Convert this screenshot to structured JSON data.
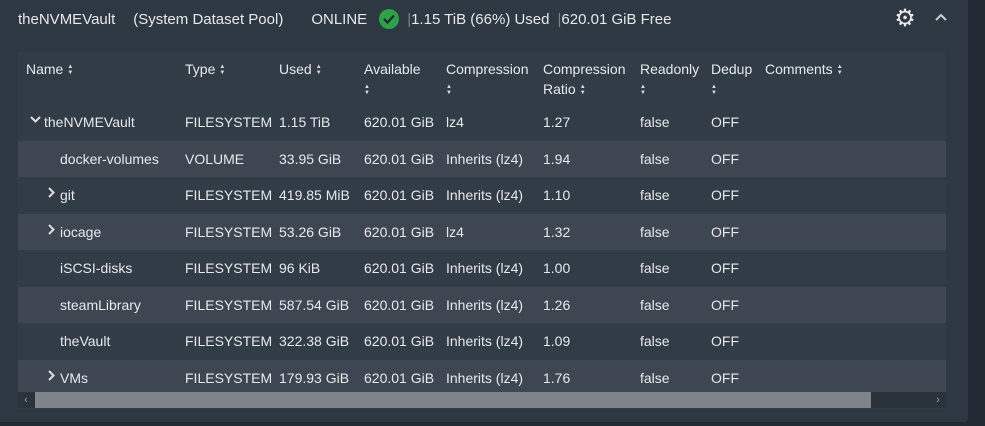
{
  "pool": {
    "name": "theNVMEVault",
    "subtitle": "(System Dataset Pool)",
    "status": "ONLINE",
    "used": "1.15 TiB (66%) Used",
    "free": "620.01 GiB Free"
  },
  "columns": [
    {
      "label": "Name",
      "label2": ""
    },
    {
      "label": "Type",
      "label2": ""
    },
    {
      "label": "Used",
      "label2": ""
    },
    {
      "label": "Available",
      "label2": ""
    },
    {
      "label": "Compression",
      "label2": ""
    },
    {
      "label": "Compression",
      "label2": "Ratio"
    },
    {
      "label": "Readonly",
      "label2": ""
    },
    {
      "label": "Dedup",
      "label2": ""
    },
    {
      "label": "Comments",
      "label2": ""
    }
  ],
  "rows": [
    {
      "name": "theNVMEVault",
      "expander": "expanded",
      "type": "FILESYSTEM",
      "used": "1.15 TiB",
      "available": "620.01 GiB",
      "compression": "lz4",
      "ratio": "1.27",
      "readonly": "false",
      "dedup": "OFF",
      "comments": ""
    },
    {
      "name": "docker-volumes",
      "expander": "none",
      "type": "VOLUME",
      "used": "33.95 GiB",
      "available": "620.01 GiB",
      "compression": "Inherits (lz4)",
      "ratio": "1.94",
      "readonly": "false",
      "dedup": "OFF",
      "comments": ""
    },
    {
      "name": "git",
      "expander": "collapsed",
      "type": "FILESYSTEM",
      "used": "419.85 MiB",
      "available": "620.01 GiB",
      "compression": "Inherits (lz4)",
      "ratio": "1.10",
      "readonly": "false",
      "dedup": "OFF",
      "comments": ""
    },
    {
      "name": "iocage",
      "expander": "collapsed",
      "type": "FILESYSTEM",
      "used": "53.26 GiB",
      "available": "620.01 GiB",
      "compression": "lz4",
      "ratio": "1.32",
      "readonly": "false",
      "dedup": "OFF",
      "comments": ""
    },
    {
      "name": "iSCSI-disks",
      "expander": "none",
      "type": "FILESYSTEM",
      "used": "96 KiB",
      "available": "620.01 GiB",
      "compression": "Inherits (lz4)",
      "ratio": "1.00",
      "readonly": "false",
      "dedup": "OFF",
      "comments": ""
    },
    {
      "name": "steamLibrary",
      "expander": "none",
      "type": "FILESYSTEM",
      "used": "587.54 GiB",
      "available": "620.01 GiB",
      "compression": "Inherits (lz4)",
      "ratio": "1.26",
      "readonly": "false",
      "dedup": "OFF",
      "comments": ""
    },
    {
      "name": "theVault",
      "expander": "none",
      "type": "FILESYSTEM",
      "used": "322.38 GiB",
      "available": "620.01 GiB",
      "compression": "Inherits (lz4)",
      "ratio": "1.09",
      "readonly": "false",
      "dedup": "OFF",
      "comments": ""
    },
    {
      "name": "VMs",
      "expander": "collapsed",
      "type": "FILESYSTEM",
      "used": "179.93 GiB",
      "available": "620.01 GiB",
      "compression": "Inherits (lz4)",
      "ratio": "1.76",
      "readonly": "false",
      "dedup": "OFF",
      "comments": ""
    }
  ],
  "colors": {
    "status_ok": "#2ca24b",
    "card": "#2e3843",
    "row_alt": "#3e4751"
  },
  "icons": {
    "status": "check-circle-icon",
    "settings": "gear-icon",
    "collapse": "chevron-up-icon"
  }
}
